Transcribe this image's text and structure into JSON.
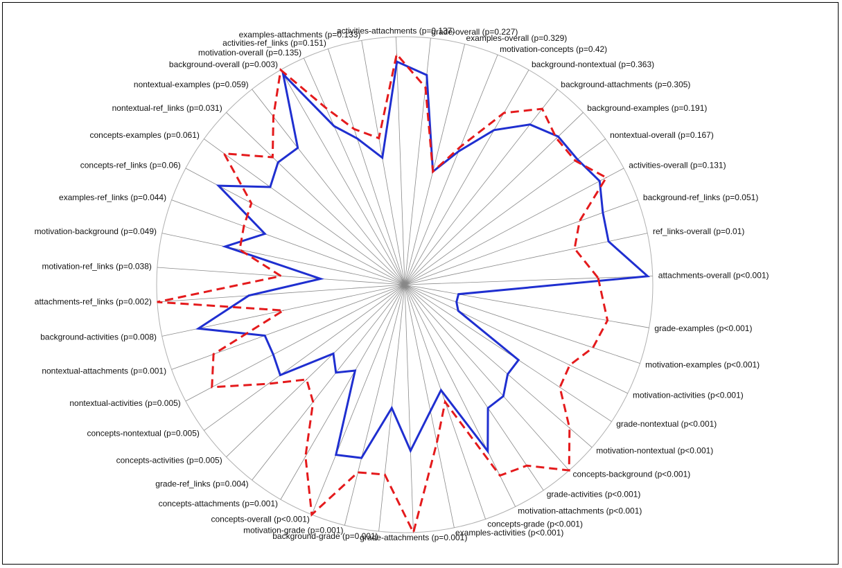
{
  "chart_data": {
    "type": "radar",
    "title": "",
    "grid": true,
    "colors": {
      "blue": "#1f2fd0",
      "red": "#e41a1c",
      "spoke": "#888888",
      "ring": "#b0b0b0"
    },
    "axes": [
      {
        "label": "attachments-overall (p<0.001)",
        "angle": 2
      },
      {
        "label": "grade-examples (p<0.001)",
        "angle": -10
      },
      {
        "label": "motivation-examples (p<0.001)",
        "angle": -18.5
      },
      {
        "label": "motivation-activities (p<0.001)",
        "angle": -26
      },
      {
        "label": "grade-nontextual (p<0.001)",
        "angle": -33.5
      },
      {
        "label": "motivation-nontextual (p<0.001)",
        "angle": -41
      },
      {
        "label": "concepts-background (p<0.001)",
        "angle": -48.5
      },
      {
        "label": "grade-activities (p<0.001)",
        "angle": -56
      },
      {
        "label": "motivation-attachments (p<0.001)",
        "angle": -63.5
      },
      {
        "label": "concepts-grade (p<0.001)",
        "angle": -71
      },
      {
        "label": "examples-activities (p<0.001)",
        "angle": -78.5
      },
      {
        "label": "grade-attachments (p=0.001)",
        "angle": -88
      },
      {
        "label": "background-grade (p=0.001)",
        "angle": -96
      },
      {
        "label": "motivation-grade (p=0.001)",
        "angle": -104
      },
      {
        "label": "concepts-overall (p<0.001)",
        "angle": -112
      },
      {
        "label": "concepts-attachments (p=0.001)",
        "angle": -120
      },
      {
        "label": "grade-ref_links (p=0.004)",
        "angle": -128
      },
      {
        "label": "concepts-activities (p=0.005)",
        "angle": -136
      },
      {
        "label": "concepts-nontextual (p=0.005)",
        "angle": -144
      },
      {
        "label": "nontextual-activities (p=0.005)",
        "angle": -152
      },
      {
        "label": "nontextual-attachments (p=0.001)",
        "angle": -160
      },
      {
        "label": "background-activities (p=0.008)",
        "angle": -168
      },
      {
        "label": "attachments-ref_links (p=0.002)",
        "angle": -176
      },
      {
        "label": "motivation-ref_links (p=0.038)",
        "angle": 176
      },
      {
        "label": "motivation-background (p=0.049)",
        "angle": 168
      },
      {
        "label": "examples-ref_links (p=0.044)",
        "angle": 160
      },
      {
        "label": "concepts-ref_links (p=0.06)",
        "angle": 152
      },
      {
        "label": "concepts-examples (p=0.061)",
        "angle": 144
      },
      {
        "label": "nontextual-ref_links (p=0.031)",
        "angle": 136
      },
      {
        "label": "nontextual-examples (p=0.059)",
        "angle": 128
      },
      {
        "label": "background-overall (p=0.003)",
        "angle": 120
      },
      {
        "label": "motivation-overall (p=0.135)",
        "angle": 114
      },
      {
        "label": "activities-ref_links (p=0.151)",
        "angle": 108
      },
      {
        "label": "examples-attachments (p=0.133)",
        "angle": 100
      },
      {
        "label": "activities-attachments (p=0.137)",
        "angle": 92
      },
      {
        "label": "grade-overall (p=0.227)",
        "angle": 84
      },
      {
        "label": "examples-overall (p=0.329)",
        "angle": 76
      },
      {
        "label": "motivation-concepts (p=0.42)",
        "angle": 68
      },
      {
        "label": "background-nontextual (p=0.363)",
        "angle": 60
      },
      {
        "label": "background-attachments (p=0.305)",
        "angle": 52
      },
      {
        "label": "background-examples (p=0.191)",
        "angle": 44
      },
      {
        "label": "nontextual-overall (p=0.167)",
        "angle": 36
      },
      {
        "label": "activities-overall (p=0.131)",
        "angle": 28
      },
      {
        "label": "background-ref_links (p=0.051)",
        "angle": 20
      },
      {
        "label": "ref_links-overall (p=0.01)",
        "angle": 12
      }
    ],
    "series": [
      {
        "color": "#1f2fd0",
        "dash": "solid",
        "values": [
          0.98,
          0.22,
          0.22,
          0.24,
          0.55,
          0.55,
          0.6,
          0.6,
          0.75,
          0.45,
          0.52,
          0.67,
          0.5,
          0.72,
          0.74,
          0.4,
          0.45,
          0.4,
          0.62,
          0.6,
          0.6,
          0.85,
          0.63,
          0.34,
          0.74,
          0.6,
          0.85,
          0.67,
          0.71,
          0.7,
          0.98,
          0.7,
          0.62,
          0.52,
          0.9,
          0.85,
          0.47,
          0.58,
          0.72,
          0.82,
          0.86,
          0.86,
          0.89,
          0.85,
          0.84
        ]
      },
      {
        "color": "#e41a1c",
        "dash": "dashed",
        "values": [
          0.78,
          0.83,
          0.8,
          0.74,
          0.75,
          0.88,
          1.0,
          0.88,
          0.86,
          0.5,
          0.65,
          1.0,
          0.77,
          0.78,
          1.0,
          0.8,
          0.6,
          0.55,
          0.68,
          0.88,
          0.82,
          0.5,
          1.0,
          0.5,
          0.68,
          0.69,
          0.7,
          0.9,
          0.74,
          0.86,
          1.0,
          0.78,
          0.66,
          0.6,
          0.93,
          0.8,
          0.47,
          0.6,
          0.8,
          0.9,
          0.85,
          0.85,
          0.92,
          0.75,
          0.7
        ]
      }
    ]
  }
}
